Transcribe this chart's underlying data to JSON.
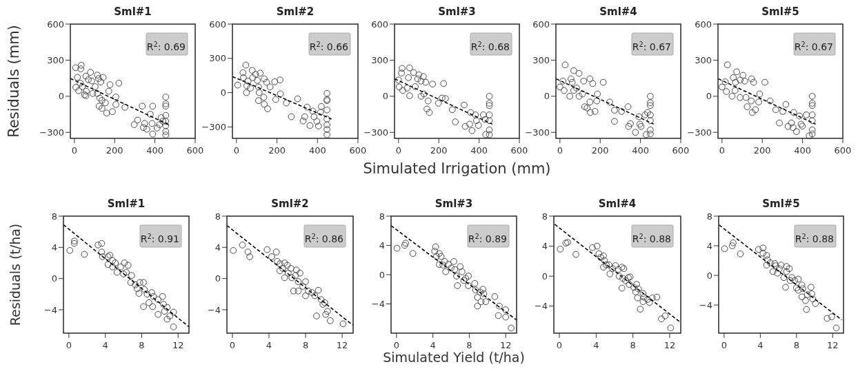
{
  "chart_data": [
    {
      "type": "scatter",
      "title": "Sml#1",
      "ylabel": "Residuals (mm)",
      "xlim": [
        -20,
        600
      ],
      "ylim": [
        -350,
        600
      ],
      "xticks": [
        0,
        200,
        400,
        600
      ],
      "yticks": [
        -300,
        0,
        300,
        600
      ],
      "marker": "circle",
      "annotations": [
        "R$^{2}$: 0.69"
      ],
      "series": [
        {
          "color": "#4d4d4d",
          "x": [
            6,
            34,
            32,
            15,
            7,
            21,
            57,
            80,
            40,
            51,
            59,
            86,
            103,
            114,
            120,
            143,
            131,
            114,
            126,
            137,
            123,
            137,
            154,
            160,
            171,
            177,
            189,
            221,
            206,
            206,
            251,
            297,
            314,
            337,
            343,
            349,
            360,
            377,
            386,
            389,
            389,
            411,
            423,
            431,
            439,
            454,
            454,
            454,
            454,
            454,
            454,
            454,
            454,
            69,
            91,
            57,
            29
          ],
          "values": [
            237,
            258,
            228,
            157,
            75,
            46,
            167,
            199,
            80,
            13,
            42,
            128,
            80,
            176,
            147,
            157,
            119,
            23,
            -15,
            -34,
            -82,
            -101,
            -54,
            -140,
            42,
            96,
            -128,
            109,
            -6,
            -69,
            -92,
            -236,
            -198,
            -82,
            -260,
            -226,
            -274,
            -149,
            -226,
            -82,
            -314,
            -264,
            -236,
            -178,
            -207,
            -6,
            -63,
            -82,
            -159,
            -207,
            -245,
            -293,
            -322,
            138,
            23,
            4,
            109
          ]
        },
        {
          "type": "line",
          "marker": "none",
          "color": "#000000",
          "line_style": "dashed",
          "x": [
            -20,
            470
          ],
          "values": [
            148,
            -238
          ]
        }
      ]
    },
    {
      "type": "scatter",
      "title": "Sml#2",
      "xlim": [
        -20,
        600
      ],
      "ylim": [
        -400,
        600
      ],
      "xticks": [
        0,
        200,
        400,
        600
      ],
      "yticks": [
        -300,
        0,
        300,
        600
      ],
      "marker": "circle",
      "annotations": [
        "R$^{2}$: 0.66"
      ],
      "series": [
        {
          "color": "#4d4d4d",
          "x": [
            6,
            46,
            32,
            34,
            51,
            57,
            78,
            80,
            69,
            49,
            94,
            117,
            103,
            109,
            112,
            109,
            137,
            149,
            135,
            137,
            154,
            166,
            189,
            215,
            217,
            194,
            246,
            271,
            302,
            329,
            337,
            349,
            363,
            377,
            383,
            397,
            405,
            419,
            415,
            447,
            447,
            447,
            447,
            447,
            447,
            447,
            447
          ],
          "values": [
            66,
            241,
            175,
            131,
            60,
            101,
            195,
            131,
            40,
            0,
            161,
            171,
            107,
            50,
            0,
            -70,
            121,
            91,
            -40,
            -101,
            -141,
            50,
            95,
            111,
            -10,
            -60,
            -91,
            -211,
            -54,
            -248,
            -211,
            -127,
            -288,
            -161,
            -211,
            -252,
            -292,
            -121,
            -171,
            -6,
            -60,
            -70,
            -151,
            -231,
            -282,
            -322,
            -368
          ]
        },
        {
          "type": "line",
          "marker": "none",
          "color": "#000000",
          "line_style": "dashed",
          "x": [
            -20,
            469
          ],
          "values": [
            141,
            -231
          ]
        }
      ]
    },
    {
      "type": "scatter",
      "title": "Sml#3",
      "xlabel": "Simulated Irrigation (mm)",
      "xlim": [
        -20,
        600
      ],
      "ylim": [
        -350,
        600
      ],
      "xticks": [
        0,
        200,
        400,
        600
      ],
      "yticks": [
        -300,
        0,
        300,
        600
      ],
      "marker": "circle",
      "annotations": [
        "R$^{2}$: 0.68"
      ],
      "series": [
        {
          "color": "#4d4d4d",
          "x": [
            0,
            18,
            15,
            3,
            21,
            55,
            49,
            43,
            55,
            75,
            83,
            95,
            101,
            112,
            123,
            135,
            112,
            126,
            147,
            141,
            153,
            169,
            224,
            198,
            216,
            233,
            267,
            282,
            326,
            331,
            353,
            358,
            365,
            382,
            387,
            397,
            421,
            430,
            433,
            451,
            451,
            451,
            451,
            451,
            451,
            451
          ],
          "values": [
            135,
            232,
            193,
            77,
            48,
            236,
            155,
            68,
            4,
            197,
            81,
            145,
            178,
            126,
            164,
            116,
            0,
            19,
            -39,
            -106,
            -135,
            101,
            106,
            -58,
            -15,
            -19,
            -112,
            -213,
            -73,
            -251,
            -232,
            -135,
            -286,
            -155,
            -203,
            -242,
            -155,
            -193,
            -319,
            0,
            -58,
            -77,
            -155,
            -203,
            -280,
            -319
          ]
        },
        {
          "type": "line",
          "marker": "none",
          "color": "#000000",
          "line_style": "dashed",
          "x": [
            -19,
            466
          ],
          "values": [
            145,
            -232
          ]
        }
      ]
    },
    {
      "type": "scatter",
      "title": "Sml#4",
      "xlim": [
        -20,
        600
      ],
      "ylim": [
        -350,
        600
      ],
      "xticks": [
        0,
        200,
        400,
        600
      ],
      "yticks": [
        -300,
        0,
        300,
        600
      ],
      "marker": "circle",
      "annotations": [
        "R$^{2}$: 0.67"
      ],
      "series": [
        {
          "color": "#4d4d4d",
          "x": [
            26,
            0,
            15,
            21,
            49,
            55,
            69,
            61,
            69,
            83,
            95,
            95,
            112,
            118,
            123,
            135,
            149,
            163,
            149,
            151,
            174,
            186,
            183,
            215,
            247,
            271,
            271,
            306,
            338,
            341,
            350,
            375,
            392,
            397,
            403,
            423,
            435,
            428,
            449,
            449,
            449,
            449,
            449,
            449,
            449
          ],
          "values": [
            261,
            77,
            126,
            48,
            0,
            145,
            213,
            116,
            48,
            68,
            190,
            0,
            19,
            126,
            -87,
            -97,
            145,
            106,
            -48,
            -135,
            -126,
            19,
            -39,
            116,
            -48,
            -116,
            -209,
            -126,
            -87,
            -251,
            -228,
            -300,
            -170,
            -232,
            -251,
            -155,
            -135,
            -319,
            0,
            -54,
            -77,
            -155,
            -203,
            -280,
            -313
          ]
        },
        {
          "type": "line",
          "marker": "none",
          "color": "#000000",
          "line_style": "dashed",
          "x": [
            -19,
            466
          ],
          "values": [
            145,
            -232
          ]
        }
      ]
    },
    {
      "type": "scatter",
      "title": "Sml#5",
      "xlim": [
        -20,
        600
      ],
      "ylim": [
        -350,
        600
      ],
      "xticks": [
        0,
        200,
        400,
        600
      ],
      "yticks": [
        -300,
        0,
        300,
        600
      ],
      "marker": "circle",
      "annotations": [
        "R$^{2}$: 0.67"
      ],
      "series": [
        {
          "color": "#4d4d4d",
          "x": [
            27,
            0,
            16,
            22,
            50,
            56,
            73,
            67,
            65,
            90,
            104,
            90,
            119,
            113,
            125,
            147,
            157,
            145,
            150,
            166,
            187,
            182,
            213,
            239,
            267,
            285,
            302,
            317,
            328,
            345,
            356,
            353,
            370,
            385,
            393,
            399,
            419,
            433,
            448,
            448,
            448,
            448,
            448,
            448,
            448
          ],
          "values": [
            261,
            77,
            120,
            39,
            0,
            155,
            203,
            116,
            48,
            135,
            174,
            -10,
            -10,
            126,
            -87,
            145,
            116,
            -39,
            -135,
            -112,
            19,
            -48,
            116,
            -39,
            -112,
            -222,
            -126,
            -68,
            -251,
            -222,
            -135,
            -261,
            -294,
            -164,
            -232,
            -248,
            -155,
            -329,
            0,
            -58,
            -77,
            -155,
            -203,
            -280,
            -313
          ]
        },
        {
          "type": "line",
          "marker": "none",
          "color": "#000000",
          "line_style": "dashed",
          "x": [
            -18,
            465
          ],
          "values": [
            145,
            -232
          ]
        }
      ]
    },
    {
      "type": "scatter",
      "title": "Sml#1",
      "ylabel": "Residuals (t/ha)",
      "xlim": [
        -0.6,
        13.2
      ],
      "ylim": [
        -7,
        8
      ],
      "xticks": [
        0,
        4,
        8,
        12
      ],
      "yticks": [
        -4,
        0,
        4,
        8
      ],
      "marker": "circle",
      "annotations": [
        "R$^{2}$: 0.91"
      ],
      "series": [
        {
          "color": "#4d4d4d",
          "x": [
            0.1,
            0.6,
            0.6,
            1.7,
            3.2,
            3.6,
            3.6,
            3.7,
            4.3,
            4.5,
            4.3,
            4.8,
            4.8,
            5.1,
            5.3,
            5.7,
            6.1,
            6.0,
            6.5,
            6.3,
            6.9,
            6.8,
            7.3,
            7.5,
            7.8,
            8.2,
            7.7,
            8.3,
            8.6,
            8.2,
            8.8,
            9.1,
            9.2,
            9.3,
            9.8,
            9.8,
            10.3,
            10.4,
            10.5,
            10.8,
            10.8,
            11.1,
            11.5,
            11.5
          ],
          "values": [
            3.6,
            4.5,
            4.8,
            3.1,
            4.3,
            4.5,
            3.4,
            2.8,
            2.8,
            3.0,
            1.8,
            2.3,
            1.5,
            2.0,
            0.8,
            1.5,
            2.0,
            0.6,
            1.7,
            0.8,
            0.4,
            -0.5,
            -0.8,
            -1.3,
            -0.5,
            -0.5,
            -1.9,
            -1.4,
            -2.0,
            -3.6,
            -3.1,
            -1.8,
            -3.6,
            -2.3,
            -2.7,
            -4.6,
            -2.3,
            -3.3,
            -4.2,
            -3.7,
            -5.2,
            -4.8,
            -4.3,
            -6.2
          ]
        },
        {
          "type": "line",
          "marker": "none",
          "color": "#000000",
          "line_style": "dashed",
          "x": [
            -0.6,
            13.2
          ],
          "values": [
            6.9,
            -6.2
          ]
        }
      ]
    },
    {
      "type": "scatter",
      "title": "Sml#2",
      "xlim": [
        -0.6,
        13.2
      ],
      "ylim": [
        -7,
        8
      ],
      "xticks": [
        0,
        4,
        8,
        12
      ],
      "yticks": [
        -4,
        0,
        4,
        8
      ],
      "marker": "circle",
      "annotations": [
        "R$^{2}$: 0.86"
      ],
      "series": [
        {
          "color": "#4d4d4d",
          "x": [
            0.1,
            1.1,
            1.7,
            1.9,
            3.8,
            4.3,
            4.8,
            4.9,
            5.2,
            5.2,
            5.5,
            5.7,
            5.7,
            6.0,
            6.1,
            6.4,
            6.5,
            6.9,
            7.0,
            6.7,
            7.2,
            7.2,
            7.4,
            7.7,
            8.0,
            8.0,
            8.3,
            8.7,
            9.0,
            9.4,
            9.2,
            9.7,
            9.9,
            10.1,
            10.2,
            10.4,
            10.7,
            12.1
          ],
          "values": [
            3.6,
            4.3,
            3.4,
            2.8,
            3.7,
            2.8,
            3.4,
            2.2,
            1.9,
            1.0,
            1.3,
            2.0,
            0.1,
            1.7,
            0.7,
            1.3,
            0.1,
            0.4,
            1.1,
            -1.6,
            -0.4,
            -1.6,
            0.7,
            -1.0,
            -0.4,
            -2.2,
            -1.6,
            -1.8,
            -2.2,
            -1.5,
            -4.8,
            -2.7,
            -3.3,
            -3.1,
            -4.6,
            -4.2,
            -5.4,
            -5.8
          ]
        },
        {
          "type": "line",
          "marker": "none",
          "color": "#000000",
          "line_style": "dashed",
          "x": [
            -0.6,
            13.2
          ],
          "values": [
            6.8,
            -6.0
          ]
        }
      ]
    },
    {
      "type": "scatter",
      "title": "Sml#3",
      "xlabel": "Simulated Yield (t/ha)",
      "xlim": [
        -0.6,
        13.2
      ],
      "ylim": [
        -8,
        8
      ],
      "xticks": [
        0,
        4,
        8,
        12
      ],
      "yticks": [
        -4,
        0,
        4,
        8
      ],
      "marker": "circle",
      "annotations": [
        "R$^{2}$: 0.89"
      ],
      "series": [
        {
          "color": "#4d4d4d",
          "x": [
            0.05,
            0.9,
            1.0,
            1.8,
            4.3,
            4.2,
            4.4,
            4.7,
            4.7,
            4.9,
            5.1,
            5.3,
            5.4,
            5.7,
            6.0,
            6.3,
            6.4,
            6.6,
            6.7,
            7.0,
            7.2,
            7.4,
            7.6,
            7.9,
            7.9,
            8.6,
            8.7,
            8.9,
            8.9,
            9.2,
            9.3,
            9.5,
            9.6,
            9.8,
            10.8,
            11.2,
            11.3,
            12.0,
            12.0,
            12.6
          ],
          "values": [
            3.6,
            4.0,
            4.3,
            2.9,
            3.8,
            3.2,
            2.5,
            2.9,
            1.4,
            2.5,
            1.3,
            1.8,
            0.4,
            1.4,
            0.9,
            1.8,
            0.7,
            -0.2,
            -1.5,
            1.1,
            0.4,
            -0.8,
            -0.5,
            -0.2,
            -1.5,
            -1.2,
            -2.1,
            -3.1,
            -4.3,
            -2.4,
            -3.7,
            -2.0,
            -2.6,
            -3.7,
            -3.0,
            -5.6,
            -4.3,
            -4.8,
            -5.8,
            -7.3
          ]
        },
        {
          "type": "line",
          "marker": "none",
          "color": "#000000",
          "line_style": "dashed",
          "x": [
            -0.6,
            13.2
          ],
          "values": [
            6.7,
            -6.2
          ]
        }
      ]
    },
    {
      "type": "scatter",
      "title": "Sml#4",
      "xlim": [
        -0.6,
        13.2
      ],
      "ylim": [
        -7.6,
        8
      ],
      "xticks": [
        0,
        4,
        8,
        12
      ],
      "yticks": [
        -4,
        0,
        4,
        8
      ],
      "marker": "circle",
      "annotations": [
        "R$^{2}$: 0.88"
      ],
      "series": [
        {
          "color": "#4d4d4d",
          "x": [
            0.1,
            0.7,
            0.9,
            1.8,
            3.6,
            4.1,
            4.3,
            4.8,
            4.5,
            4.9,
            4.8,
            5.1,
            5.4,
            5.5,
            5.8,
            6.1,
            6.4,
            6.5,
            6.8,
            6.8,
            7.0,
            6.9,
            7.2,
            7.5,
            7.7,
            7.6,
            8.1,
            8.4,
            8.3,
            8.5,
            8.8,
            8.6,
            9.1,
            9.2,
            9.1,
            9.6,
            9.8,
            10.1,
            10.6,
            11.1,
            11.5,
            12.1
          ],
          "values": [
            3.6,
            4.4,
            4.5,
            2.9,
            3.8,
            4.0,
            3.0,
            2.7,
            2.5,
            2.1,
            1.2,
            1.5,
            1.5,
            0.3,
            1.0,
            1.4,
            0.9,
            0.0,
            -1.6,
            1.2,
            1.0,
            -0.3,
            -0.6,
            -0.2,
            -0.1,
            -1.1,
            -1.5,
            -1.1,
            -2.1,
            -2.9,
            -4.4,
            -1.7,
            -2.3,
            -2.8,
            -3.4,
            -3.1,
            -3.5,
            -2.9,
            -2.8,
            -5.7,
            -5.3,
            -6.9
          ]
        },
        {
          "type": "line",
          "marker": "none",
          "color": "#000000",
          "line_style": "dashed",
          "x": [
            -0.5,
            13.1
          ],
          "values": [
            6.9,
            -6.1
          ]
        }
      ]
    },
    {
      "type": "scatter",
      "title": "Sml#5",
      "xlim": [
        -0.6,
        13.2
      ],
      "ylim": [
        -7.8,
        8
      ],
      "xticks": [
        0,
        4,
        8,
        12
      ],
      "yticks": [
        -4,
        0,
        4,
        8
      ],
      "marker": "circle",
      "annotations": [
        "R$^{2}$: 0.88"
      ],
      "series": [
        {
          "color": "#4d4d4d",
          "x": [
            0.05,
            0.9,
            1.0,
            1.8,
            3.8,
            4.3,
            4.3,
            4.7,
            4.7,
            4.8,
            5.1,
            5.4,
            5.6,
            5.7,
            5.9,
            6.1,
            6.3,
            6.6,
            6.8,
            6.9,
            6.9,
            7.2,
            7.3,
            7.5,
            7.8,
            8.2,
            8.0,
            8.2,
            8.6,
            8.6,
            8.7,
            9.0,
            9.1,
            9.2,
            9.6,
            9.7,
            9.8,
            10.1,
            11.4,
            11.9,
            12.4
          ],
          "values": [
            3.6,
            4.0,
            4.4,
            2.9,
            3.5,
            3.7,
            3.0,
            2.7,
            1.4,
            2.1,
            1.7,
            0.5,
            1.6,
            1.3,
            0.3,
            0.9,
            1.4,
            -0.3,
            -1.6,
            1.2,
            0.5,
            0.9,
            -0.7,
            -0.3,
            -0.7,
            -0.5,
            -1.7,
            -2.0,
            -1.3,
            -2.9,
            -1.8,
            -3.4,
            -4.6,
            -2.6,
            -1.6,
            -2.5,
            -3.2,
            -3.8,
            -5.8,
            -5.6,
            -7.1
          ]
        },
        {
          "type": "line",
          "marker": "none",
          "color": "#000000",
          "line_style": "dashed",
          "x": [
            -0.55,
            13.0
          ],
          "values": [
            6.8,
            -6.0
          ]
        }
      ]
    }
  ]
}
